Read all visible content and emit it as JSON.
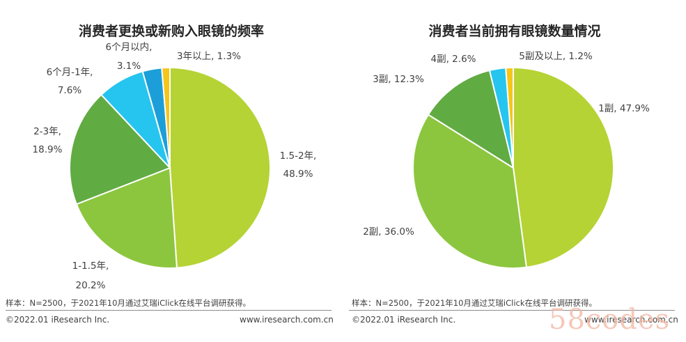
{
  "chart_data": [
    {
      "type": "pie",
      "title": "消费者更换或新购入眼镜的频率",
      "slices": [
        {
          "label": "1.5-2年,",
          "value": 48.9,
          "value_text": "48.9%",
          "color": "#b5d334"
        },
        {
          "label": "1-1.5年,",
          "value": 20.2,
          "value_text": "20.2%",
          "color": "#8cc63e"
        },
        {
          "label": "2-3年,",
          "value": 18.9,
          "value_text": "18.9%",
          "color": "#61ab43"
        },
        {
          "label": "6个月-1年,",
          "value": 7.6,
          "value_text": "7.6%",
          "color": "#25c5ef"
        },
        {
          "label": "6个月以内,",
          "value": 3.1,
          "value_text": "3.1%",
          "color": "#1c9ed9"
        },
        {
          "label": "3年以上, 1.3%",
          "value": 1.3,
          "value_text": "",
          "color": "#f5c518"
        }
      ]
    },
    {
      "type": "pie",
      "title": "消费者当前拥有眼镜数量情况",
      "slices": [
        {
          "label": "1副, 47.9%",
          "value": 47.9,
          "value_text": "",
          "color": "#b5d334"
        },
        {
          "label": "2副, 36.0%",
          "value": 36.0,
          "value_text": "",
          "color": "#8cc63e"
        },
        {
          "label": "3副, 12.3%",
          "value": 12.3,
          "value_text": "",
          "color": "#61ab43"
        },
        {
          "label": "4副, 2.6%",
          "value": 2.6,
          "value_text": "",
          "color": "#25c5ef"
        },
        {
          "label": "5副及以上, 1.2%",
          "value": 1.2,
          "value_text": "",
          "color": "#f5c518"
        }
      ]
    }
  ],
  "left_panel": {
    "note": "样本：N=2500，于2021年10月通过艾瑞iClick在线平台调研获得。",
    "copyright": "©2022.01 iResearch Inc.",
    "website": "www.iresearch.com.cn"
  },
  "right_panel": {
    "note": "样本：N=2500，于2021年10月通过艾瑞iClick在线平台调研获得。",
    "copyright": "©2022.01 iResearch Inc.",
    "website": "www.iresearch.com.cn"
  },
  "watermark": "58codes"
}
